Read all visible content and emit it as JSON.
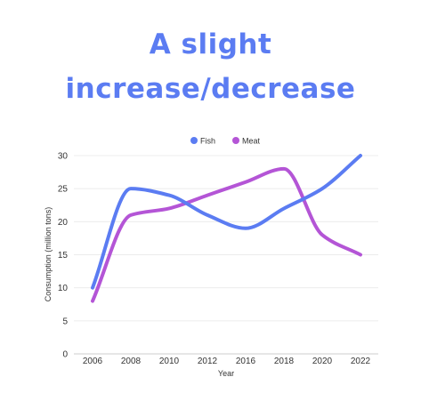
{
  "chart_data": {
    "type": "line",
    "title_lines": [
      "A slight",
      "increase/decrease"
    ],
    "xlabel": "Year",
    "ylabel": "Consumption (million tons)",
    "categories": [
      "2006",
      "2008",
      "2010",
      "2012",
      "2016",
      "2018",
      "2020",
      "2022"
    ],
    "ylim": [
      0,
      30
    ],
    "yticks": [
      "0",
      "5",
      "10",
      "15",
      "20",
      "25",
      "30"
    ],
    "grid": true,
    "legend_position": "top-center",
    "series": [
      {
        "name": "Fish",
        "color": "#5b7cf2",
        "values": [
          10,
          25,
          24,
          21,
          19,
          22,
          25,
          30
        ]
      },
      {
        "name": "Meat",
        "color": "#b455d6",
        "values": [
          8,
          21,
          22,
          24,
          26,
          28,
          18,
          15
        ]
      }
    ]
  }
}
